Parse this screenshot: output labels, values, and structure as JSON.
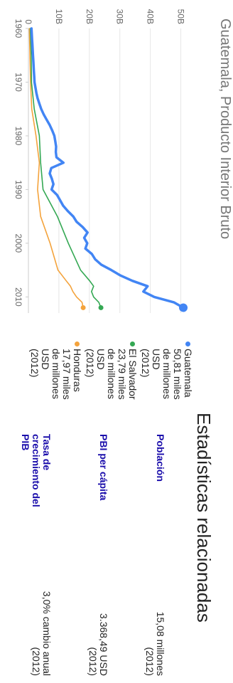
{
  "chart_title": "Guatemala, Producto Interior Bruto",
  "chart_data": {
    "type": "line",
    "title": "Guatemala, Producto Interior Bruto",
    "x_ticks": [
      "1960",
      "1970",
      "1980",
      "1990",
      "2000",
      "2010"
    ],
    "y_ticks": [
      "0",
      "10B",
      "20B",
      "30B",
      "40B",
      "50B"
    ],
    "xlim": [
      1960,
      2013
    ],
    "ylim": [
      0,
      55
    ],
    "grid": true,
    "series": [
      {
        "name": "Guatemala",
        "color": "#4285f4",
        "x": [
          1960,
          1961,
          1962,
          1963,
          1964,
          1965,
          1966,
          1967,
          1968,
          1969,
          1970,
          1971,
          1972,
          1973,
          1974,
          1975,
          1976,
          1977,
          1978,
          1979,
          1980,
          1981,
          1982,
          1983,
          1984,
          1985,
          1986,
          1987,
          1988,
          1989,
          1990,
          1991,
          1992,
          1993,
          1994,
          1995,
          1996,
          1997,
          1998,
          1999,
          2000,
          2001,
          2002,
          2003,
          2004,
          2005,
          2006,
          2007,
          2008,
          2009,
          2010,
          2011,
          2012
        ],
        "y": [
          1.0,
          1.1,
          1.2,
          1.3,
          1.4,
          1.5,
          1.6,
          1.7,
          1.8,
          1.9,
          2.0,
          2.3,
          2.6,
          3.0,
          3.6,
          4.2,
          5.0,
          6.0,
          7.0,
          7.8,
          8.5,
          8.8,
          9.1,
          9.0,
          9.2,
          11.5,
          7.5,
          7.0,
          7.7,
          8.2,
          7.6,
          9.4,
          10.4,
          11.4,
          12.9,
          14.7,
          15.8,
          17.8,
          19.4,
          18.3,
          19.3,
          18.7,
          20.8,
          21.9,
          23.9,
          27.2,
          30.2,
          34.1,
          39.1,
          37.7,
          41.3,
          47.7,
          50.81
        ]
      },
      {
        "name": "El Salvador",
        "color": "#34a853",
        "x": [
          1960,
          1965,
          1970,
          1975,
          1980,
          1985,
          1990,
          1995,
          2000,
          2005,
          2007,
          2008,
          2009,
          2010,
          2011,
          2012
        ],
        "y": [
          0.6,
          0.9,
          1.0,
          1.9,
          3.6,
          4.0,
          4.8,
          9.5,
          13.1,
          17.1,
          20.1,
          21.4,
          20.7,
          21.4,
          23.1,
          23.79
        ]
      },
      {
        "name": "Honduras",
        "color": "#f4a33c",
        "x": [
          1960,
          1965,
          1970,
          1975,
          1980,
          1985,
          1990,
          1995,
          2000,
          2005,
          2007,
          2008,
          2009,
          2010,
          2011,
          2012
        ],
        "y": [
          0.3,
          0.5,
          0.7,
          1.1,
          2.5,
          3.6,
          3.0,
          4.0,
          7.1,
          9.7,
          12.4,
          13.8,
          14.6,
          15.8,
          17.6,
          17.97
        ]
      }
    ]
  },
  "legend": [
    {
      "name": "Guatemala",
      "value": "50,81 miles de millones USD",
      "year": "(2012)",
      "color": "#4285f4"
    },
    {
      "name": "El Salvador",
      "value": "23,79 miles de millones USD",
      "year": "(2012)",
      "color": "#34a853"
    },
    {
      "name": "Honduras",
      "value": "17,97 miles de millones USD",
      "year": "(2012)",
      "color": "#f4a33c"
    }
  ],
  "stats": {
    "heading": "Estadísticas relacionadas",
    "rows": [
      {
        "label": "Población",
        "value": "15,08 millones",
        "year": "(2012)"
      },
      {
        "label": "PBI per cápita",
        "value": "3.368,49 USD",
        "year": "(2012)"
      },
      {
        "label": "Tasa de crecimiento del PIB",
        "value": "3,0% cambio anual",
        "year": "(2012)"
      }
    ]
  }
}
